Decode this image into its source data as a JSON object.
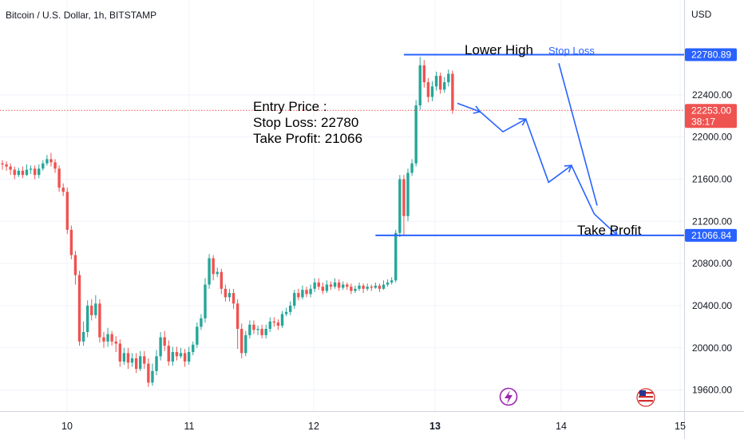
{
  "header": {
    "symbol_title": "Bitcoin / U.S. Dollar, 1h, BITSTAMP",
    "currency": "USD"
  },
  "chart_data": {
    "type": "candlestick",
    "title": "Bitcoin / U.S. Dollar, 1h, BITSTAMP",
    "y_unit": "USD",
    "ylim": [
      19400,
      23300
    ],
    "y_ticks": [
      {
        "value": 22400,
        "label": "22400.00"
      },
      {
        "value": 22000,
        "label": "22000.00"
      },
      {
        "value": 21600,
        "label": "21600.00"
      },
      {
        "value": 21200,
        "label": "21200.00"
      },
      {
        "value": 20800,
        "label": "20800.00"
      },
      {
        "value": 20400,
        "label": "20400.00"
      },
      {
        "value": 20000,
        "label": "20000.00"
      },
      {
        "value": 19600,
        "label": "19600.00"
      }
    ],
    "x_ticks": [
      {
        "label": "10",
        "bold": false
      },
      {
        "label": "11",
        "bold": false
      },
      {
        "label": "12",
        "bold": false
      },
      {
        "label": "13",
        "bold": true
      },
      {
        "label": "14",
        "bold": false
      },
      {
        "label": "15",
        "bold": false
      }
    ],
    "grid": true,
    "up_color": "#26a69a",
    "down_color": "#ef5350",
    "levels": {
      "stop_loss": {
        "value": 22780.89,
        "label": "22780.89",
        "color": "#2962ff"
      },
      "take_profit": {
        "value": 21066.84,
        "label": "21066.84",
        "color": "#2962ff"
      },
      "last_price": {
        "value": 22253.0,
        "label": "22253.00",
        "countdown": "38:17",
        "color": "#ef5350"
      }
    },
    "annotations": {
      "lower_high": "Lower High",
      "stop_loss": "Stop Loss",
      "take_profit": "Take Profit",
      "entry_price": "Entry Price :",
      "stop_loss_line": "Stop Loss: 22780",
      "take_profit_line": "Take Profit: 21066"
    },
    "projection_path": [
      22320,
      22240,
      22050,
      22170,
      21570,
      21730,
      21270,
      21070
    ],
    "candles": [
      [
        21750,
        21740,
        21780,
        21690
      ],
      [
        21740,
        21720,
        21770,
        21680
      ],
      [
        21720,
        21690,
        21750,
        21640
      ],
      [
        21690,
        21640,
        21720,
        21600
      ],
      [
        21640,
        21680,
        21710,
        21620
      ],
      [
        21680,
        21640,
        21720,
        21610
      ],
      [
        21640,
        21690,
        21740,
        21630
      ],
      [
        21690,
        21700,
        21730,
        21650
      ],
      [
        21700,
        21640,
        21730,
        21600
      ],
      [
        21640,
        21700,
        21740,
        21610
      ],
      [
        21700,
        21750,
        21780,
        21680
      ],
      [
        21750,
        21790,
        21830,
        21730
      ],
      [
        21790,
        21760,
        21850,
        21720
      ],
      [
        21760,
        21700,
        21790,
        21660
      ],
      [
        21700,
        21520,
        21730,
        21480
      ],
      [
        21520,
        21480,
        21560,
        21440
      ],
      [
        21480,
        21120,
        21520,
        21080
      ],
      [
        21120,
        20880,
        21160,
        20840
      ],
      [
        20880,
        20690,
        20920,
        20600
      ],
      [
        20690,
        20060,
        20730,
        20020
      ],
      [
        20060,
        20150,
        20250,
        20020
      ],
      [
        20150,
        20400,
        20450,
        20100
      ],
      [
        20400,
        20310,
        20460,
        20260
      ],
      [
        20310,
        20420,
        20500,
        20280
      ],
      [
        20420,
        20100,
        20460,
        20050
      ],
      [
        20100,
        20060,
        20150,
        20000
      ],
      [
        20060,
        20130,
        20190,
        20010
      ],
      [
        20130,
        20060,
        20160,
        20020
      ],
      [
        20060,
        20040,
        20110,
        19960
      ],
      [
        20040,
        19870,
        20080,
        19820
      ],
      [
        19870,
        19950,
        20000,
        19840
      ],
      [
        19950,
        19860,
        20000,
        19800
      ],
      [
        19860,
        19900,
        19950,
        19820
      ],
      [
        19900,
        19800,
        19950,
        19760
      ],
      [
        19800,
        19920,
        19970,
        19780
      ],
      [
        19920,
        19850,
        19970,
        19800
      ],
      [
        19850,
        19670,
        19900,
        19630
      ],
      [
        19670,
        19780,
        19850,
        19640
      ],
      [
        19780,
        19920,
        19980,
        19740
      ],
      [
        19920,
        20100,
        20150,
        19880
      ],
      [
        20100,
        20020,
        20160,
        19970
      ],
      [
        20020,
        19870,
        20070,
        19830
      ],
      [
        19870,
        19960,
        20010,
        19830
      ],
      [
        19960,
        19920,
        20010,
        19880
      ],
      [
        19920,
        19950,
        20000,
        19900
      ],
      [
        19950,
        19870,
        19990,
        19820
      ],
      [
        19870,
        19960,
        20010,
        19840
      ],
      [
        19960,
        20030,
        20060,
        19930
      ],
      [
        20030,
        20200,
        20240,
        20000
      ],
      [
        20200,
        20280,
        20320,
        20170
      ],
      [
        20280,
        20600,
        20660,
        20240
      ],
      [
        20600,
        20850,
        20890,
        20560
      ],
      [
        20850,
        20700,
        20880,
        20640
      ],
      [
        20700,
        20720,
        20760,
        20670
      ],
      [
        20720,
        20560,
        20750,
        20510
      ],
      [
        20560,
        20480,
        20600,
        20440
      ],
      [
        20480,
        20520,
        20560,
        20440
      ],
      [
        20520,
        20420,
        20560,
        20370
      ],
      [
        20420,
        20180,
        20460,
        19990
      ],
      [
        20180,
        19950,
        20230,
        19900
      ],
      [
        19950,
        20120,
        20160,
        19920
      ],
      [
        20120,
        20220,
        20260,
        20090
      ],
      [
        20220,
        20170,
        20260,
        20130
      ],
      [
        20170,
        20180,
        20210,
        20120
      ],
      [
        20180,
        20120,
        20220,
        20090
      ],
      [
        20120,
        20180,
        20220,
        20090
      ],
      [
        20180,
        20250,
        20290,
        20150
      ],
      [
        20250,
        20240,
        20290,
        20200
      ],
      [
        20240,
        20210,
        20270,
        20170
      ],
      [
        20210,
        20320,
        20350,
        20190
      ],
      [
        20320,
        20340,
        20380,
        20300
      ],
      [
        20340,
        20400,
        20440,
        20310
      ],
      [
        20400,
        20520,
        20550,
        20370
      ],
      [
        20520,
        20480,
        20560,
        20450
      ],
      [
        20480,
        20550,
        20590,
        20460
      ],
      [
        20550,
        20510,
        20580,
        20480
      ],
      [
        20510,
        20560,
        20600,
        20480
      ],
      [
        20560,
        20620,
        20660,
        20530
      ],
      [
        20620,
        20580,
        20660,
        20550
      ],
      [
        20580,
        20540,
        20620,
        20510
      ],
      [
        20540,
        20600,
        20640,
        20520
      ],
      [
        20600,
        20580,
        20630,
        20550
      ],
      [
        20580,
        20620,
        20660,
        20560
      ],
      [
        20620,
        20570,
        20650,
        20540
      ],
      [
        20570,
        20600,
        20630,
        20550
      ],
      [
        20600,
        20580,
        20620,
        20550
      ],
      [
        20580,
        20540,
        20610,
        20510
      ],
      [
        20540,
        20560,
        20590,
        20520
      ],
      [
        20560,
        20590,
        20620,
        20540
      ],
      [
        20590,
        20560,
        20610,
        20520
      ],
      [
        20560,
        20580,
        20610,
        20540
      ],
      [
        20580,
        20570,
        20600,
        20540
      ],
      [
        20570,
        20590,
        20620,
        20560
      ],
      [
        20590,
        20560,
        20610,
        20530
      ],
      [
        20560,
        20600,
        20640,
        20550
      ],
      [
        20600,
        20620,
        20650,
        20580
      ],
      [
        20620,
        20640,
        20670,
        20600
      ],
      [
        20640,
        21090,
        21120,
        20620
      ],
      [
        21090,
        21600,
        21640,
        21050
      ],
      [
        21600,
        21250,
        21640,
        21060
      ],
      [
        21250,
        21660,
        21700,
        21200
      ],
      [
        21660,
        21750,
        21790,
        21630
      ],
      [
        21750,
        22300,
        22350,
        21720
      ],
      [
        22300,
        22680,
        22760,
        22260
      ],
      [
        22680,
        22520,
        22730,
        22470
      ],
      [
        22520,
        22380,
        22560,
        22330
      ],
      [
        22380,
        22480,
        22530,
        22340
      ],
      [
        22480,
        22580,
        22620,
        22440
      ],
      [
        22580,
        22450,
        22610,
        22410
      ],
      [
        22450,
        22520,
        22570,
        22420
      ],
      [
        22520,
        22600,
        22640,
        22480
      ],
      [
        22600,
        22253,
        22630,
        22220
      ]
    ]
  }
}
